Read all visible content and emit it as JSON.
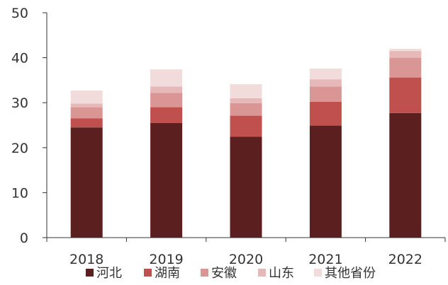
{
  "chart_data": {
    "type": "bar",
    "stacked": true,
    "categories": [
      "2018",
      "2019",
      "2020",
      "2021",
      "2022"
    ],
    "series": [
      {
        "name": "河北",
        "color": "#5c1f1f",
        "values": [
          24.5,
          25.5,
          22.4,
          24.9,
          27.7
        ]
      },
      {
        "name": "湖南",
        "color": "#c0504d",
        "values": [
          2.0,
          3.5,
          4.7,
          5.3,
          7.9
        ]
      },
      {
        "name": "安徽",
        "color": "#d99694",
        "values": [
          2.5,
          3.2,
          2.8,
          3.4,
          4.4
        ]
      },
      {
        "name": "山东",
        "color": "#e6b9b8",
        "values": [
          0.8,
          1.4,
          1.1,
          1.6,
          1.5
        ]
      },
      {
        "name": "其他省份",
        "color": "#f2dcdb",
        "values": [
          2.9,
          3.8,
          3.1,
          2.4,
          0.5
        ]
      }
    ],
    "ylim": [
      0,
      50
    ],
    "yticks": [
      0,
      10,
      20,
      30,
      40,
      50
    ],
    "xlabel": "",
    "ylabel": "",
    "grid": false,
    "legend_position": "bottom"
  }
}
